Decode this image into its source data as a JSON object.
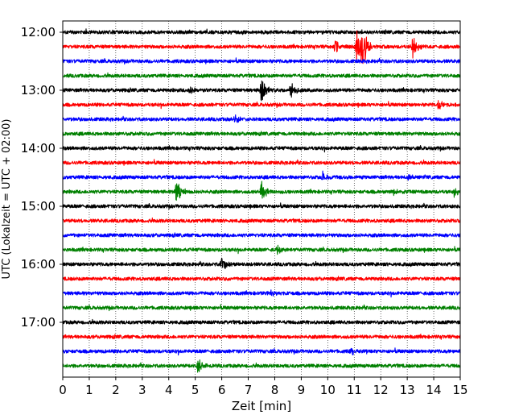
{
  "chart_data": {
    "type": "line",
    "title": "",
    "xlabel": "Zeit  [min]",
    "ylabel": "UTC (Lokalzeit = UTC + 02:00)",
    "xlim": [
      0,
      15
    ],
    "xticks": [
      0,
      1,
      2,
      3,
      4,
      5,
      6,
      7,
      8,
      9,
      10,
      11,
      12,
      13,
      14,
      15
    ],
    "yticks": [
      "12:00",
      "13:00",
      "14:00",
      "15:00",
      "16:00",
      "17:00"
    ],
    "trace_interval_min": 15,
    "start_time": "12:00",
    "trace_colors": [
      "#000000",
      "#ff0000",
      "#0000ff",
      "#008000"
    ],
    "grid_x": true,
    "grid_style": "dotted",
    "series": [
      {
        "start": "12:00",
        "color": "#000000",
        "events": []
      },
      {
        "start": "12:15",
        "color": "#ff0000",
        "events": [
          {
            "t": 10.3,
            "amp": 10
          },
          {
            "t": 11.1,
            "amp": 22
          },
          {
            "t": 11.3,
            "amp": 38
          },
          {
            "t": 13.2,
            "amp": 16
          }
        ]
      },
      {
        "start": "12:30",
        "color": "#0000ff",
        "events": []
      },
      {
        "start": "12:45",
        "color": "#008000",
        "events": []
      },
      {
        "start": "13:00",
        "color": "#000000",
        "events": [
          {
            "t": 4.8,
            "amp": 4
          },
          {
            "t": 7.5,
            "amp": 16
          },
          {
            "t": 8.6,
            "amp": 13
          }
        ]
      },
      {
        "start": "13:15",
        "color": "#ff0000",
        "events": [
          {
            "t": 14.2,
            "amp": 7
          }
        ]
      },
      {
        "start": "13:30",
        "color": "#0000ff",
        "events": [
          {
            "t": 6.5,
            "amp": 5
          }
        ]
      },
      {
        "start": "13:45",
        "color": "#008000",
        "events": []
      },
      {
        "start": "14:00",
        "color": "#000000",
        "events": []
      },
      {
        "start": "14:15",
        "color": "#ff0000",
        "events": []
      },
      {
        "start": "14:30",
        "color": "#0000ff",
        "events": [
          {
            "t": 9.8,
            "amp": 7
          },
          {
            "t": 13.0,
            "amp": 4
          }
        ]
      },
      {
        "start": "14:45",
        "color": "#008000",
        "events": [
          {
            "t": 4.3,
            "amp": 16
          },
          {
            "t": 7.5,
            "amp": 12
          },
          {
            "t": 12.5,
            "amp": 4
          },
          {
            "t": 14.8,
            "amp": 5
          }
        ]
      },
      {
        "start": "15:00",
        "color": "#000000",
        "events": []
      },
      {
        "start": "15:15",
        "color": "#ff0000",
        "events": []
      },
      {
        "start": "15:30",
        "color": "#0000ff",
        "events": []
      },
      {
        "start": "15:45",
        "color": "#008000",
        "events": [
          {
            "t": 8.1,
            "amp": 7
          }
        ]
      },
      {
        "start": "16:00",
        "color": "#000000",
        "events": [
          {
            "t": 6.0,
            "amp": 10
          }
        ]
      },
      {
        "start": "16:15",
        "color": "#ff0000",
        "events": []
      },
      {
        "start": "16:30",
        "color": "#0000ff",
        "events": [
          {
            "t": 7.8,
            "amp": 4
          }
        ]
      },
      {
        "start": "16:45",
        "color": "#008000",
        "events": []
      },
      {
        "start": "17:00",
        "color": "#000000",
        "events": []
      },
      {
        "start": "17:15",
        "color": "#ff0000",
        "events": []
      },
      {
        "start": "17:30",
        "color": "#0000ff",
        "events": [
          {
            "t": 10.9,
            "amp": 4
          }
        ]
      },
      {
        "start": "17:45",
        "color": "#008000",
        "events": [
          {
            "t": 5.1,
            "amp": 10
          }
        ]
      }
    ]
  }
}
